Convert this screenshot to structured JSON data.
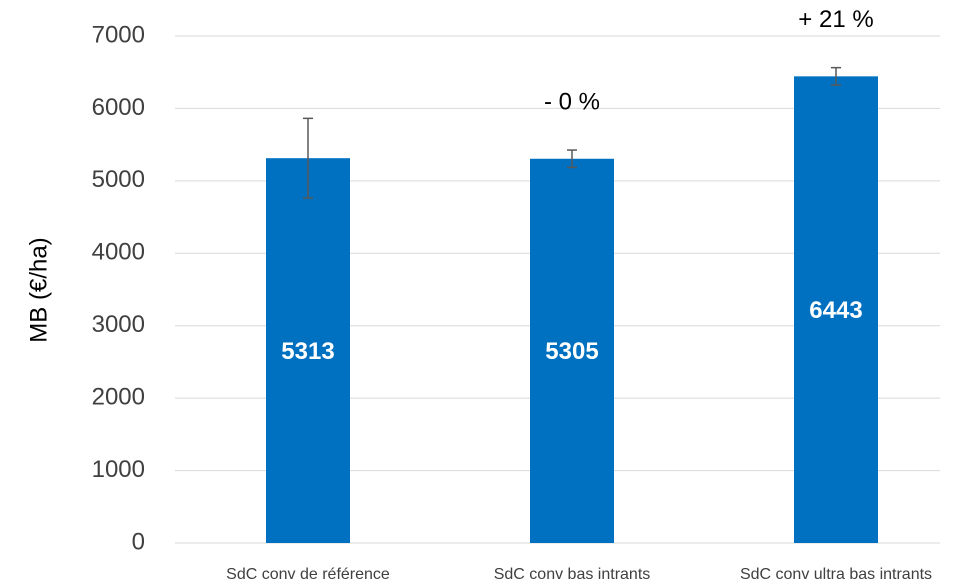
{
  "chart_data": {
    "type": "bar",
    "y_label": "MB (€/ha)",
    "categories": [
      "SdC conv de référence",
      "SdC conv bas intrants",
      "SdC conv ultra bas intrants"
    ],
    "values": [
      5313,
      5305,
      6443
    ],
    "errors": [
      550,
      120,
      120
    ],
    "annotations": [
      null,
      "- 0 %",
      "+ 21 %"
    ],
    "color": "#0070c0",
    "ylim": [
      0,
      7000
    ],
    "yticks": [
      0,
      1000,
      2000,
      3000,
      4000,
      5000,
      6000,
      7000
    ],
    "grid": true
  }
}
